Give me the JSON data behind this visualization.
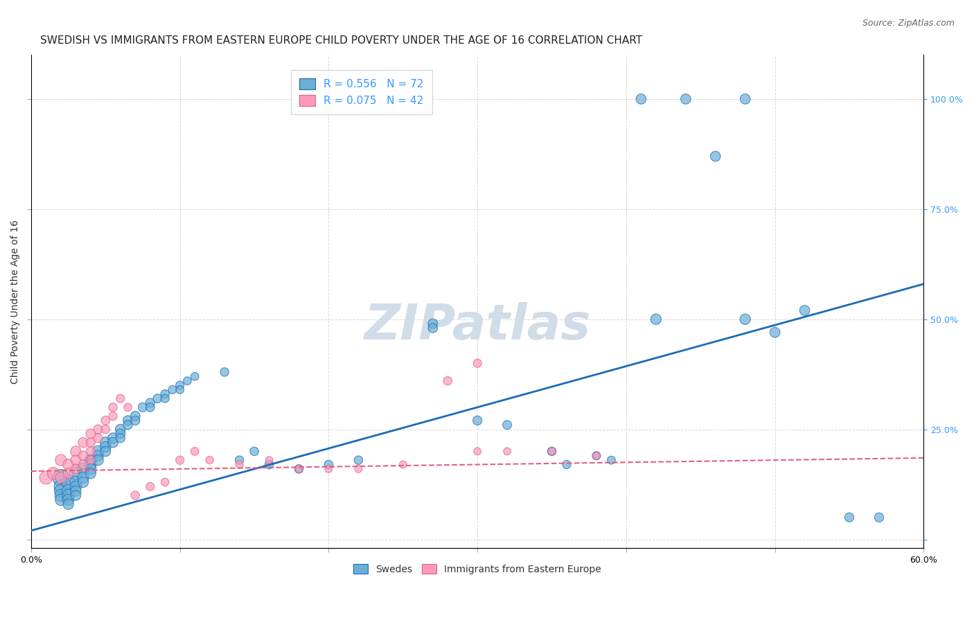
{
  "title": "SWEDISH VS IMMIGRANTS FROM EASTERN EUROPE CHILD POVERTY UNDER THE AGE OF 16 CORRELATION CHART",
  "source": "Source: ZipAtlas.com",
  "xlabel": "",
  "ylabel": "Child Poverty Under the Age of 16",
  "xlim": [
    0.0,
    0.6
  ],
  "ylim": [
    -0.02,
    1.1
  ],
  "xticks": [
    0.0,
    0.1,
    0.2,
    0.3,
    0.4,
    0.5,
    0.6
  ],
  "xticklabels": [
    "0.0%",
    "",
    "",
    "",
    "",
    "",
    "60.0%"
  ],
  "yticks_right": [
    0.0,
    0.25,
    0.5,
    0.75,
    1.0
  ],
  "yticklabels_right": [
    "",
    "25.0%",
    "50.0%",
    "75.0%",
    "100.0%"
  ],
  "blue_R": 0.556,
  "blue_N": 72,
  "pink_R": 0.075,
  "pink_N": 42,
  "blue_color": "#6baed6",
  "pink_color": "#fc9aba",
  "blue_line_color": "#1a6bb5",
  "pink_line_color": "#e06080",
  "watermark": "ZIPatlas",
  "watermark_color": "#d0dce8",
  "legend_label_blue": "R = 0.556   N = 72",
  "legend_label_pink": "R = 0.075   N = 42",
  "swedes_label": "Swedes",
  "immigrants_label": "Immigrants from Eastern Europe",
  "blue_scatter": [
    [
      0.02,
      0.14
    ],
    [
      0.02,
      0.12
    ],
    [
      0.02,
      0.11
    ],
    [
      0.02,
      0.1
    ],
    [
      0.02,
      0.09
    ],
    [
      0.025,
      0.13
    ],
    [
      0.025,
      0.11
    ],
    [
      0.025,
      0.1
    ],
    [
      0.025,
      0.09
    ],
    [
      0.025,
      0.08
    ],
    [
      0.03,
      0.15
    ],
    [
      0.03,
      0.13
    ],
    [
      0.03,
      0.12
    ],
    [
      0.03,
      0.11
    ],
    [
      0.03,
      0.1
    ],
    [
      0.035,
      0.16
    ],
    [
      0.035,
      0.14
    ],
    [
      0.035,
      0.13
    ],
    [
      0.04,
      0.18
    ],
    [
      0.04,
      0.17
    ],
    [
      0.04,
      0.16
    ],
    [
      0.04,
      0.15
    ],
    [
      0.045,
      0.2
    ],
    [
      0.045,
      0.19
    ],
    [
      0.045,
      0.18
    ],
    [
      0.05,
      0.22
    ],
    [
      0.05,
      0.21
    ],
    [
      0.05,
      0.2
    ],
    [
      0.055,
      0.23
    ],
    [
      0.055,
      0.22
    ],
    [
      0.06,
      0.25
    ],
    [
      0.06,
      0.24
    ],
    [
      0.06,
      0.23
    ],
    [
      0.065,
      0.27
    ],
    [
      0.065,
      0.26
    ],
    [
      0.07,
      0.28
    ],
    [
      0.07,
      0.27
    ],
    [
      0.075,
      0.3
    ],
    [
      0.08,
      0.31
    ],
    [
      0.08,
      0.3
    ],
    [
      0.085,
      0.32
    ],
    [
      0.09,
      0.33
    ],
    [
      0.09,
      0.32
    ],
    [
      0.095,
      0.34
    ],
    [
      0.1,
      0.35
    ],
    [
      0.1,
      0.34
    ],
    [
      0.105,
      0.36
    ],
    [
      0.11,
      0.37
    ],
    [
      0.13,
      0.38
    ],
    [
      0.14,
      0.18
    ],
    [
      0.15,
      0.2
    ],
    [
      0.16,
      0.17
    ],
    [
      0.18,
      0.16
    ],
    [
      0.2,
      0.17
    ],
    [
      0.22,
      0.18
    ],
    [
      0.27,
      0.49
    ],
    [
      0.27,
      0.48
    ],
    [
      0.3,
      0.27
    ],
    [
      0.32,
      0.26
    ],
    [
      0.35,
      0.2
    ],
    [
      0.36,
      0.17
    ],
    [
      0.38,
      0.19
    ],
    [
      0.39,
      0.18
    ],
    [
      0.42,
      0.5
    ],
    [
      0.48,
      0.5
    ],
    [
      0.5,
      0.47
    ],
    [
      0.52,
      0.52
    ],
    [
      0.55,
      0.05
    ],
    [
      0.57,
      0.05
    ],
    [
      0.41,
      1.0
    ],
    [
      0.44,
      1.0
    ],
    [
      0.48,
      1.0
    ],
    [
      0.46,
      0.87
    ]
  ],
  "blue_sizes": [
    300,
    200,
    180,
    160,
    140,
    200,
    180,
    160,
    140,
    120,
    180,
    160,
    140,
    120,
    110,
    160,
    140,
    120,
    150,
    140,
    130,
    120,
    140,
    130,
    120,
    130,
    120,
    110,
    120,
    110,
    110,
    100,
    90,
    100,
    90,
    100,
    90,
    90,
    90,
    85,
    85,
    80,
    75,
    75,
    75,
    70,
    70,
    70,
    80,
    80,
    80,
    80,
    80,
    80,
    80,
    100,
    95,
    90,
    85,
    80,
    75,
    75,
    70,
    120,
    120,
    110,
    110,
    90,
    90,
    110,
    110,
    110,
    110
  ],
  "pink_scatter": [
    [
      0.01,
      0.14
    ],
    [
      0.015,
      0.15
    ],
    [
      0.02,
      0.18
    ],
    [
      0.02,
      0.14
    ],
    [
      0.025,
      0.17
    ],
    [
      0.025,
      0.15
    ],
    [
      0.03,
      0.2
    ],
    [
      0.03,
      0.18
    ],
    [
      0.03,
      0.16
    ],
    [
      0.035,
      0.22
    ],
    [
      0.035,
      0.19
    ],
    [
      0.035,
      0.17
    ],
    [
      0.04,
      0.24
    ],
    [
      0.04,
      0.22
    ],
    [
      0.04,
      0.2
    ],
    [
      0.04,
      0.18
    ],
    [
      0.045,
      0.25
    ],
    [
      0.045,
      0.23
    ],
    [
      0.05,
      0.27
    ],
    [
      0.05,
      0.25
    ],
    [
      0.055,
      0.3
    ],
    [
      0.055,
      0.28
    ],
    [
      0.06,
      0.32
    ],
    [
      0.065,
      0.3
    ],
    [
      0.07,
      0.1
    ],
    [
      0.08,
      0.12
    ],
    [
      0.09,
      0.13
    ],
    [
      0.1,
      0.18
    ],
    [
      0.11,
      0.2
    ],
    [
      0.12,
      0.18
    ],
    [
      0.14,
      0.17
    ],
    [
      0.16,
      0.18
    ],
    [
      0.18,
      0.16
    ],
    [
      0.2,
      0.16
    ],
    [
      0.22,
      0.16
    ],
    [
      0.25,
      0.17
    ],
    [
      0.3,
      0.2
    ],
    [
      0.32,
      0.2
    ],
    [
      0.35,
      0.2
    ],
    [
      0.28,
      0.36
    ],
    [
      0.3,
      0.4
    ],
    [
      0.38,
      0.19
    ]
  ],
  "pink_sizes": [
    180,
    160,
    140,
    130,
    130,
    120,
    120,
    110,
    100,
    110,
    100,
    90,
    100,
    90,
    85,
    80,
    90,
    85,
    85,
    80,
    80,
    75,
    75,
    70,
    80,
    75,
    70,
    75,
    70,
    65,
    65,
    60,
    60,
    60,
    60,
    60,
    60,
    60,
    60,
    80,
    75,
    60
  ],
  "blue_line_x": [
    0.0,
    0.6
  ],
  "blue_line_y": [
    0.02,
    0.58
  ],
  "pink_line_x": [
    0.0,
    0.6
  ],
  "pink_line_y": [
    0.155,
    0.185
  ],
  "grid_color": "#cccccc",
  "bg_color": "#ffffff",
  "title_fontsize": 11,
  "axis_label_fontsize": 10,
  "tick_fontsize": 9,
  "legend_fontsize": 11
}
